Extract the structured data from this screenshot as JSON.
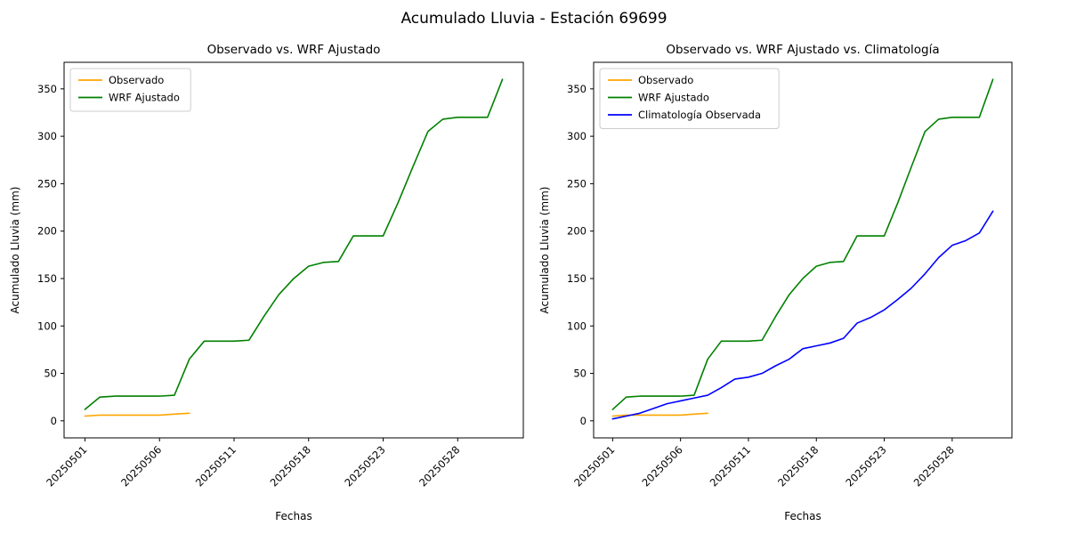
{
  "figure": {
    "title": "Acumulado Lluvia - Estación 69699"
  },
  "chart_data": [
    {
      "type": "line",
      "title": "Observado vs. WRF Ajustado",
      "xlabel": "Fechas",
      "ylabel": "Acumulado Lluvia (mm)",
      "ylim": [
        -18,
        378
      ],
      "yticks": [
        0,
        50,
        100,
        150,
        200,
        250,
        300,
        350
      ],
      "n_points": 29,
      "xtick_positions": [
        0,
        5,
        10,
        15,
        20,
        25
      ],
      "xtick_labels": [
        "20250501",
        "20250506",
        "20250511",
        "20250518",
        "20250523",
        "20250528"
      ],
      "grid": false,
      "legend_position": "upper left",
      "series": [
        {
          "name": "Observado",
          "color": "#ffa500",
          "values": [
            5,
            6,
            6,
            6,
            6,
            6,
            7,
            8
          ]
        },
        {
          "name": "WRF Ajustado",
          "color": "#008000",
          "values": [
            12,
            25,
            26,
            26,
            26,
            26,
            27,
            65,
            84,
            84,
            84,
            85,
            110,
            133,
            150,
            163,
            167,
            168,
            195,
            195,
            195,
            230,
            268,
            305,
            318,
            320,
            320,
            320,
            360
          ]
        }
      ]
    },
    {
      "type": "line",
      "title": "Observado vs. WRF Ajustado vs. Climatología",
      "xlabel": "Fechas",
      "ylabel": "Acumulado Lluvia (mm)",
      "ylim": [
        -18,
        378
      ],
      "yticks": [
        0,
        50,
        100,
        150,
        200,
        250,
        300,
        350
      ],
      "n_points": 29,
      "xtick_positions": [
        0,
        5,
        10,
        15,
        20,
        25
      ],
      "xtick_labels": [
        "20250501",
        "20250506",
        "20250511",
        "20250518",
        "20250523",
        "20250528"
      ],
      "grid": false,
      "legend_position": "upper left",
      "series": [
        {
          "name": "Observado",
          "color": "#ffa500",
          "values": [
            5,
            6,
            6,
            6,
            6,
            6,
            7,
            8
          ]
        },
        {
          "name": "WRF Ajustado",
          "color": "#008000",
          "values": [
            12,
            25,
            26,
            26,
            26,
            26,
            27,
            65,
            84,
            84,
            84,
            85,
            110,
            133,
            150,
            163,
            167,
            168,
            195,
            195,
            195,
            230,
            268,
            305,
            318,
            320,
            320,
            320,
            360
          ]
        },
        {
          "name": "Climatología Observada",
          "color": "#0000ff",
          "values": [
            2,
            5,
            8,
            13,
            18,
            21,
            24,
            27,
            35,
            44,
            46,
            50,
            58,
            65,
            76,
            79,
            82,
            87,
            103,
            109,
            117,
            128,
            140,
            155,
            172,
            185,
            190,
            198,
            221
          ]
        }
      ]
    }
  ]
}
